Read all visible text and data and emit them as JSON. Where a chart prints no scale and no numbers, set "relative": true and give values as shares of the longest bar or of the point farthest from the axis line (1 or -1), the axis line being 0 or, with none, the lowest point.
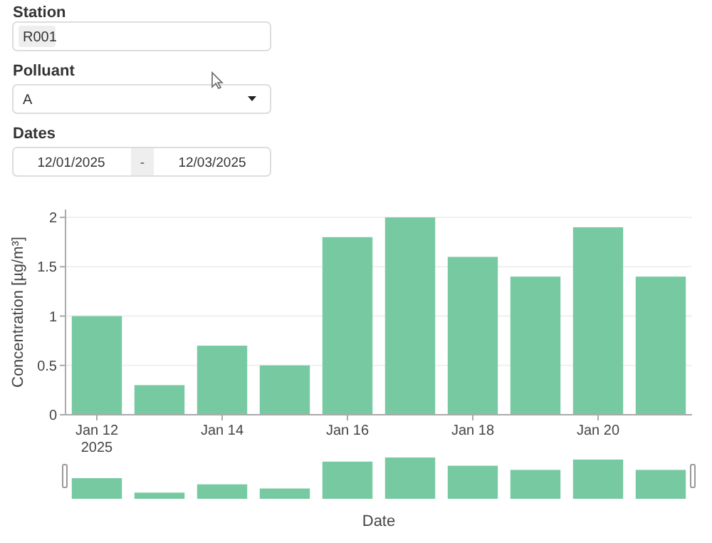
{
  "chart_data": [
    {
      "type": "bar",
      "ylabel": "Concentration [µg/m³]",
      "annotations": [
        "Station",
        "R001",
        "Polluant",
        "A",
        "Dates",
        "12/01/2025",
        "-",
        "12/03/2025"
      ],
      "x": [
        "2025-01-12",
        "2025-01-13",
        "2025-01-14",
        "2025-01-15",
        "2025-01-16",
        "2025-01-17",
        "2025-01-18",
        "2025-01-19",
        "2025-01-20",
        "2025-01-21"
      ],
      "values": [
        1,
        0.3,
        0.7,
        0.5,
        1.8,
        2,
        1.6,
        1.4,
        1.9,
        1.4
      ],
      "color": "#77c9a2",
      "xlim": [
        "2025-01-11T12:00",
        "2025-01-21T12:00"
      ],
      "xticks": [
        {
          "value": "2025-01-12",
          "label": "Jan 12\n2025"
        },
        {
          "value": "2025-01-14",
          "label": "Jan 14"
        },
        {
          "value": "2025-01-16",
          "label": "Jan 16"
        },
        {
          "value": "2025-01-18",
          "label": "Jan 18"
        },
        {
          "value": "2025-01-20",
          "label": "Jan 20"
        }
      ],
      "ylim": [
        0,
        2.08
      ],
      "yticks": [
        0,
        0.5,
        1,
        1.5,
        2
      ],
      "grid": "y"
    },
    {
      "type": "bar",
      "relative": true,
      "xlabel": "Date",
      "x": [
        "2025-01-12",
        "2025-01-13",
        "2025-01-14",
        "2025-01-15",
        "2025-01-16",
        "2025-01-17",
        "2025-01-18",
        "2025-01-19",
        "2025-01-20",
        "2025-01-21"
      ],
      "values": [
        0.5,
        0.15,
        0.35,
        0.25,
        0.9,
        1,
        0.8,
        0.7,
        0.95,
        0.7
      ],
      "color": "#77c9a2",
      "xlim": [
        "2025-01-11T12:00",
        "2025-01-21T12:00"
      ]
    }
  ]
}
